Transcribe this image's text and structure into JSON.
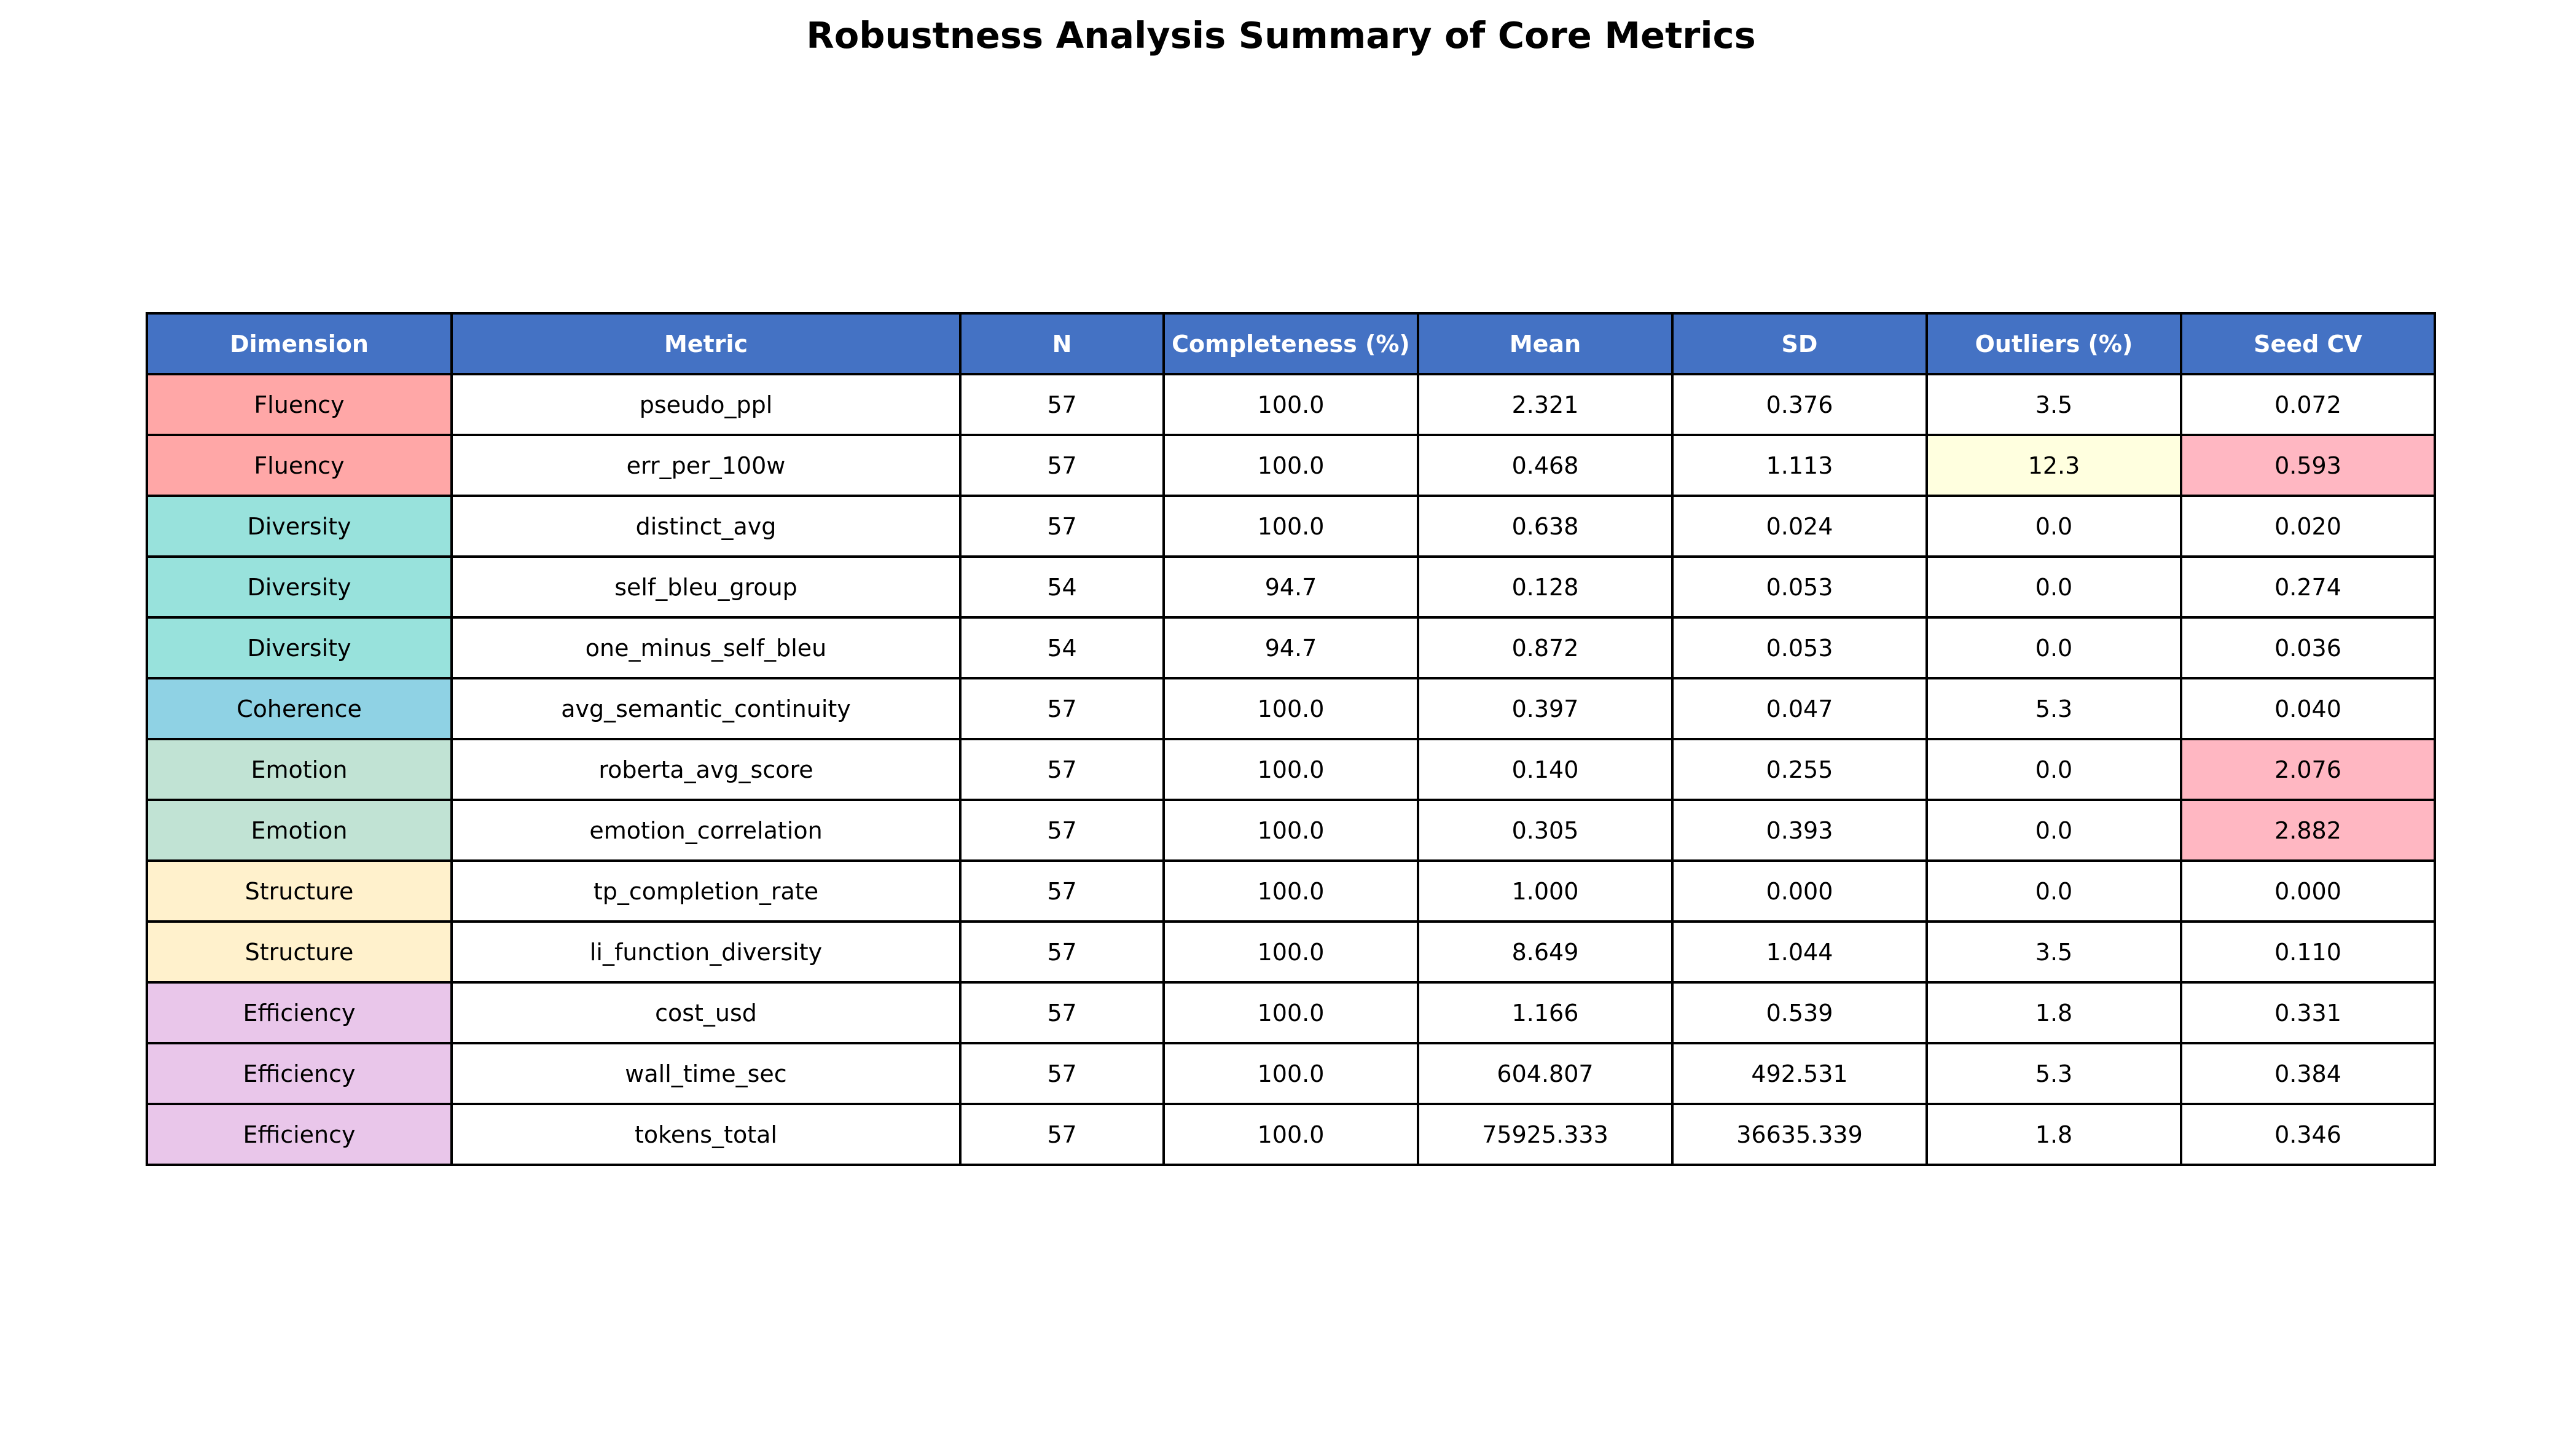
{
  "chart_data": {
    "type": "table",
    "title": "Robustness Analysis Summary of Core Metrics",
    "columns": [
      "Dimension",
      "Metric",
      "N",
      "Completeness (%)",
      "Mean",
      "SD",
      "Outliers (%)",
      "Seed CV"
    ],
    "rows": [
      [
        "Fluency",
        "pseudo_ppl",
        "57",
        "100.0",
        "2.321",
        "0.376",
        "3.5",
        "0.072"
      ],
      [
        "Fluency",
        "err_per_100w",
        "57",
        "100.0",
        "0.468",
        "1.113",
        "12.3",
        "0.593"
      ],
      [
        "Diversity",
        "distinct_avg",
        "57",
        "100.0",
        "0.638",
        "0.024",
        "0.0",
        "0.020"
      ],
      [
        "Diversity",
        "self_bleu_group",
        "54",
        "94.7",
        "0.128",
        "0.053",
        "0.0",
        "0.274"
      ],
      [
        "Diversity",
        "one_minus_self_bleu",
        "54",
        "94.7",
        "0.872",
        "0.053",
        "0.0",
        "0.036"
      ],
      [
        "Coherence",
        "avg_semantic_continuity",
        "57",
        "100.0",
        "0.397",
        "0.047",
        "5.3",
        "0.040"
      ],
      [
        "Emotion",
        "roberta_avg_score",
        "57",
        "100.0",
        "0.140",
        "0.255",
        "0.0",
        "2.076"
      ],
      [
        "Emotion",
        "emotion_correlation",
        "57",
        "100.0",
        "0.305",
        "0.393",
        "0.0",
        "2.882"
      ],
      [
        "Structure",
        "tp_completion_rate",
        "57",
        "100.0",
        "1.000",
        "0.000",
        "0.0",
        "0.000"
      ],
      [
        "Structure",
        "li_function_diversity",
        "57",
        "100.0",
        "8.649",
        "1.044",
        "3.5",
        "0.110"
      ],
      [
        "Efficiency",
        "cost_usd",
        "57",
        "100.0",
        "1.166",
        "0.539",
        "1.8",
        "0.331"
      ],
      [
        "Efficiency",
        "wall_time_sec",
        "57",
        "100.0",
        "604.807",
        "492.531",
        "5.3",
        "0.384"
      ],
      [
        "Efficiency",
        "tokens_total",
        "57",
        "100.0",
        "75925.333",
        "36635.339",
        "1.8",
        "0.346"
      ]
    ],
    "dimension_colors": {
      "Fluency": "#ffa7a7",
      "Diversity": "#98e2dc",
      "Coherence": "#8fd2e4",
      "Emotion": "#c1e3d4",
      "Structure": "#fff1cc",
      "Efficiency": "#e9c6ea"
    },
    "header_color": "#4472c4",
    "highlight_colors": {
      "outlier_high": "#ffffdf",
      "seed_cv_high": "#ffb7c2"
    },
    "highlights": [
      {
        "row": 1,
        "column": "Outliers (%)",
        "style": "outlier_high"
      },
      {
        "row": 1,
        "column": "Seed CV",
        "style": "seed_cv_high"
      },
      {
        "row": 6,
        "column": "Seed CV",
        "style": "seed_cv_high"
      },
      {
        "row": 7,
        "column": "Seed CV",
        "style": "seed_cv_high"
      }
    ]
  }
}
